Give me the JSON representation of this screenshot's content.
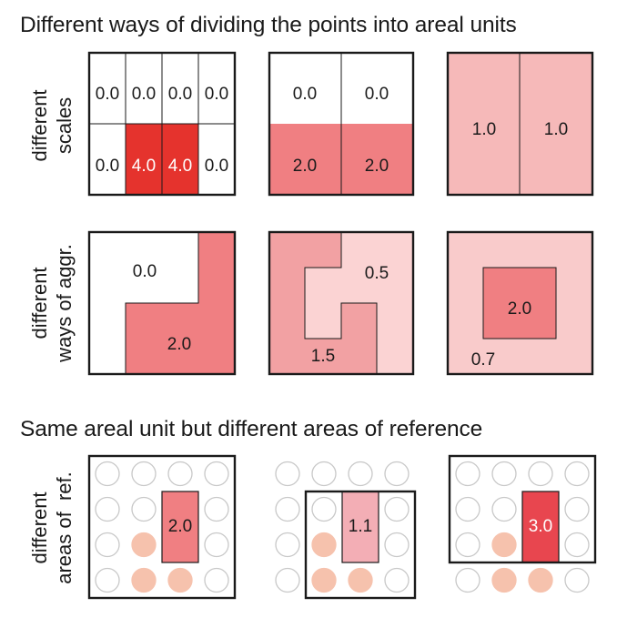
{
  "headings": {
    "top": "Different ways of dividing the points into areal units",
    "bottom": "Same areal unit but different areas of reference"
  },
  "row_labels": {
    "scales": [
      "different",
      "scales"
    ],
    "aggregation": [
      "different",
      "ways of aggr."
    ],
    "reference": [
      "different",
      "areas of  ref."
    ]
  },
  "colors": {
    "white": "#ffffff",
    "level_05": "#fbd3d3",
    "level_07": "#f9cbcb",
    "level_10": "#f6b9b9",
    "level_11": "#f3aeb5",
    "level_15": "#f2a1a3",
    "level_20": "#f07f82",
    "level_30": "#e8464f",
    "level_40": "#e5332d",
    "point_filled": "#f6c2ad",
    "point_empty": "#ffffff",
    "point_outline": "#c8c8c8",
    "border": "#1a1a1a"
  },
  "scales": {
    "panel_4x2": {
      "top_row": [
        "0.0",
        "0.0",
        "0.0",
        "0.0"
      ],
      "bottom_row": [
        "0.0",
        "4.0",
        "4.0",
        "0.0"
      ]
    },
    "panel_2x2": {
      "top_row": [
        "0.0",
        "0.0"
      ],
      "bottom_row": [
        "2.0",
        "2.0"
      ]
    },
    "panel_2x1": {
      "row": [
        "1.0",
        "1.0"
      ]
    }
  },
  "aggregation": {
    "panel_l_shape": {
      "outer": "0.0",
      "inner": "2.0"
    },
    "panel_s_shape": {
      "outer": "0.5",
      "inner": "1.5"
    },
    "panel_center": {
      "outer": "0.7",
      "inner": "2.0"
    }
  },
  "reference": {
    "panel_full": {
      "value": "2.0"
    },
    "panel_three_rows_three_cols": {
      "value": "1.1"
    },
    "panel_top_three_rows": {
      "value": "3.0"
    }
  }
}
